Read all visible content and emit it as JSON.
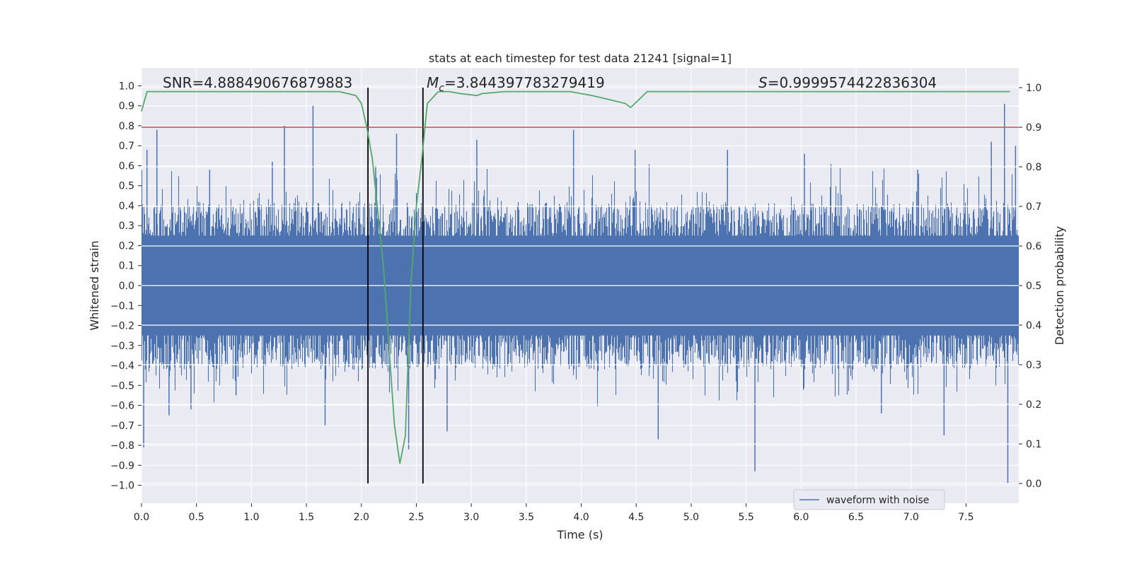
{
  "chart_data": {
    "type": "line",
    "title": "stats at each timestep for test data 21241 [signal=1]",
    "xlabel": "Time (s)",
    "ylabel_left": "Whitened strain",
    "ylabel_right": "Detection probability",
    "xlim": [
      0.0,
      7.98
    ],
    "ylim_left": [
      -1.09,
      1.09
    ],
    "ylim_right": [
      0.0,
      1.0
    ],
    "x_ticks": [
      "0.0",
      "0.5",
      "1.0",
      "1.5",
      "2.0",
      "2.5",
      "3.0",
      "3.5",
      "4.0",
      "4.5",
      "5.0",
      "5.5",
      "6.0",
      "6.5",
      "7.0",
      "7.5"
    ],
    "y_ticks_left": [
      "1.0",
      "0.9",
      "0.8",
      "0.7",
      "0.6",
      "0.5",
      "0.4",
      "0.3",
      "0.2",
      "0.1",
      "0.0",
      "−0.1",
      "−0.2",
      "−0.3",
      "−0.4",
      "−0.5",
      "−0.6",
      "−0.7",
      "−0.8",
      "−0.9",
      "−1.0"
    ],
    "y_ticks_right": [
      "1.0",
      "0.9",
      "0.8",
      "0.7",
      "0.6",
      "0.5",
      "0.4",
      "0.3",
      "0.2",
      "0.1",
      "0.0"
    ],
    "grid": true,
    "legend_position": "lower-right",
    "annotations": {
      "snr": "SNR=4.888490676879883",
      "mc_symbol": "M",
      "mc_subscript": "c",
      "mc_value": "=3.844397783279419",
      "s_symbol": "S",
      "s_value": "=0.9999574422836304"
    },
    "series": [
      {
        "name": "waveform with noise",
        "axis": "left",
        "color": "#4c72b0",
        "kind": "noise-envelope",
        "core_band": [
          -0.25,
          0.25
        ],
        "spikes": [
          {
            "x": 0.02,
            "y": -0.81
          },
          {
            "x": 0.05,
            "y": 0.68
          },
          {
            "x": 0.14,
            "y": 0.78
          },
          {
            "x": 0.25,
            "y": -0.65
          },
          {
            "x": 0.45,
            "y": -0.62
          },
          {
            "x": 0.62,
            "y": 0.58
          },
          {
            "x": 0.86,
            "y": -0.55
          },
          {
            "x": 1.19,
            "y": 0.62
          },
          {
            "x": 1.3,
            "y": 0.8
          },
          {
            "x": 1.56,
            "y": 0.9
          },
          {
            "x": 1.67,
            "y": -0.7
          },
          {
            "x": 2.13,
            "y": 0.6
          },
          {
            "x": 2.32,
            "y": 0.76
          },
          {
            "x": 2.43,
            "y": -0.82
          },
          {
            "x": 2.78,
            "y": -0.73
          },
          {
            "x": 3.05,
            "y": 0.73
          },
          {
            "x": 3.93,
            "y": 0.78
          },
          {
            "x": 4.49,
            "y": 0.68
          },
          {
            "x": 4.7,
            "y": -0.77
          },
          {
            "x": 5.33,
            "y": 0.68
          },
          {
            "x": 5.58,
            "y": -0.93
          },
          {
            "x": 6.03,
            "y": 0.66
          },
          {
            "x": 6.73,
            "y": -0.64
          },
          {
            "x": 7.06,
            "y": 0.58
          },
          {
            "x": 7.3,
            "y": -0.75
          },
          {
            "x": 7.73,
            "y": 0.72
          },
          {
            "x": 7.85,
            "y": 0.91
          },
          {
            "x": 7.88,
            "y": -0.99
          },
          {
            "x": 7.95,
            "y": 0.7
          }
        ]
      },
      {
        "name": "",
        "axis": "right",
        "color": "#55a868",
        "x": [
          0.0,
          0.05,
          0.1,
          0.3,
          0.5,
          0.8,
          1.0,
          1.2,
          1.4,
          1.6,
          1.8,
          1.95,
          2.0,
          2.05,
          2.1,
          2.2,
          2.3,
          2.35,
          2.4,
          2.45,
          2.5,
          2.55,
          2.6,
          2.7,
          2.8,
          2.9,
          3.05,
          3.1,
          3.3,
          3.5,
          3.7,
          3.9,
          4.1,
          4.25,
          4.4,
          4.45,
          4.6,
          4.8,
          5.0,
          5.5,
          6.0,
          6.3,
          6.6,
          7.0,
          7.5,
          7.9
        ],
        "y": [
          0.94,
          0.99,
          0.99,
          0.99,
          0.99,
          0.99,
          0.99,
          0.99,
          0.99,
          0.99,
          0.99,
          0.98,
          0.96,
          0.9,
          0.82,
          0.55,
          0.15,
          0.05,
          0.12,
          0.5,
          0.7,
          0.82,
          0.96,
          0.99,
          0.99,
          0.985,
          0.98,
          0.985,
          0.99,
          0.99,
          0.99,
          0.99,
          0.98,
          0.97,
          0.96,
          0.95,
          0.99,
          0.99,
          0.99,
          0.99,
          0.99,
          0.99,
          0.99,
          0.99,
          0.99,
          0.99
        ]
      },
      {
        "name": "",
        "axis": "right",
        "color": "#c44e52",
        "kind": "threshold",
        "y": 0.9
      }
    ],
    "vertical_lines": [
      {
        "x": 2.06,
        "color": "#000000"
      },
      {
        "x": 2.56,
        "color": "#000000"
      }
    ]
  }
}
